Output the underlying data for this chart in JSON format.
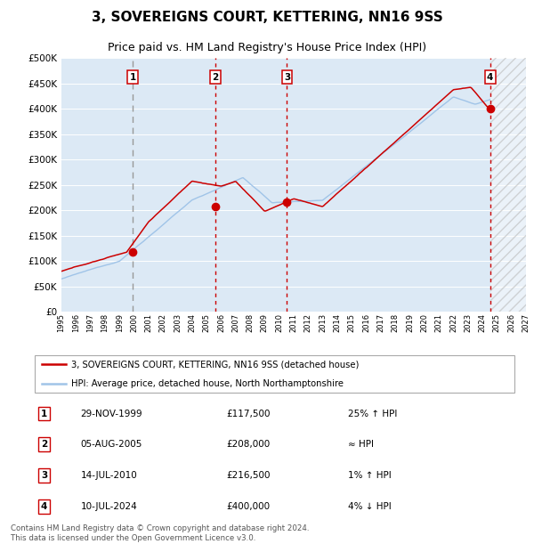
{
  "title": "3, SOVEREIGNS COURT, KETTERING, NN16 9SS",
  "subtitle": "Price paid vs. HM Land Registry's House Price Index (HPI)",
  "title_fontsize": 11,
  "subtitle_fontsize": 9,
  "plot_bg_color": "#dce9f5",
  "hpi_line_color": "#a0c4e8",
  "price_line_color": "#cc0000",
  "marker_color": "#cc0000",
  "ytick_labels": [
    "£0",
    "£50K",
    "£100K",
    "£150K",
    "£200K",
    "£250K",
    "£300K",
    "£350K",
    "£400K",
    "£450K",
    "£500K"
  ],
  "yticks": [
    0,
    50000,
    100000,
    150000,
    200000,
    250000,
    300000,
    350000,
    400000,
    450000,
    500000
  ],
  "sale_date_floats": [
    1999.91,
    2005.59,
    2010.54,
    2024.52
  ],
  "sale_prices": [
    117500,
    208000,
    216500,
    400000
  ],
  "sale_labels": [
    "1",
    "2",
    "3",
    "4"
  ],
  "sale_info": [
    {
      "num": "1",
      "date": "29-NOV-1999",
      "price": "£117,500",
      "vs": "25% ↑ HPI"
    },
    {
      "num": "2",
      "date": "05-AUG-2005",
      "price": "£208,000",
      "vs": "≈ HPI"
    },
    {
      "num": "3",
      "date": "14-JUL-2010",
      "price": "£216,500",
      "vs": "1% ↑ HPI"
    },
    {
      "num": "4",
      "date": "10-JUL-2024",
      "price": "£400,000",
      "vs": "4% ↓ HPI"
    }
  ],
  "legend_line1": "3, SOVEREIGNS COURT, KETTERING, NN16 9SS (detached house)",
  "legend_line2": "HPI: Average price, detached house, North Northamptonshire",
  "footer": "Contains HM Land Registry data © Crown copyright and database right 2024.\nThis data is licensed under the Open Government Licence v3.0.",
  "xmin": 1995,
  "xmax": 2027,
  "future_start": 2024.52,
  "ylim": [
    0,
    500000
  ]
}
